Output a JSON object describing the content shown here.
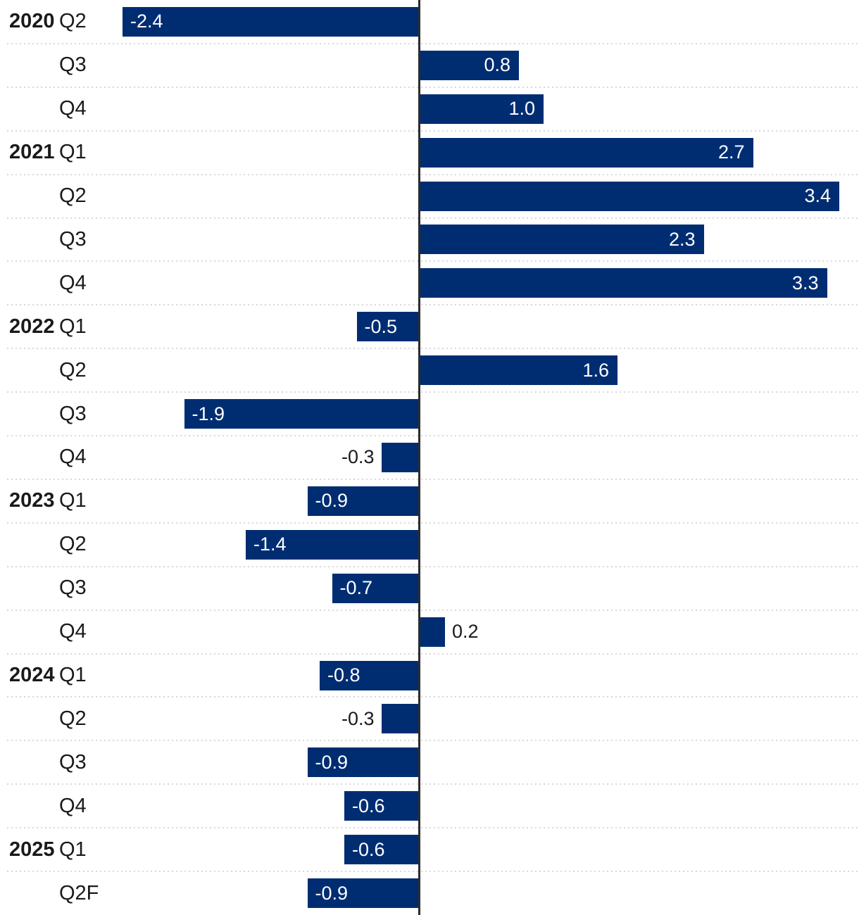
{
  "chart_data": {
    "type": "bar",
    "orientation": "horizontal",
    "title": "",
    "xlabel": "",
    "ylabel": "",
    "xlim": [
      -3.4,
      3.57
    ],
    "grid": "dotted-row-separators",
    "zero_axis_line": true,
    "legend": "none",
    "colors": {
      "bar": "#002d72",
      "value_label_inside": "#ffffff",
      "value_label_outside": "#1a1a1a",
      "category_text": "#1a1a1a",
      "axis_line": "#2d2d2d",
      "gridline": "#d8d8d8",
      "background": "#ffffff"
    },
    "rows": [
      {
        "year": "2020",
        "quarter": "Q2",
        "value": -2.4,
        "label": "-2.4"
      },
      {
        "year": "",
        "quarter": "Q3",
        "value": 0.8,
        "label": "0.8"
      },
      {
        "year": "",
        "quarter": "Q4",
        "value": 1.0,
        "label": "1.0"
      },
      {
        "year": "2021",
        "quarter": "Q1",
        "value": 2.7,
        "label": "2.7"
      },
      {
        "year": "",
        "quarter": "Q2",
        "value": 3.4,
        "label": "3.4"
      },
      {
        "year": "",
        "quarter": "Q3",
        "value": 2.3,
        "label": "2.3"
      },
      {
        "year": "",
        "quarter": "Q4",
        "value": 3.3,
        "label": "3.3"
      },
      {
        "year": "2022",
        "quarter": "Q1",
        "value": -0.5,
        "label": "-0.5"
      },
      {
        "year": "",
        "quarter": "Q2",
        "value": 1.6,
        "label": "1.6"
      },
      {
        "year": "",
        "quarter": "Q3",
        "value": -1.9,
        "label": "-1.9"
      },
      {
        "year": "",
        "quarter": "Q4",
        "value": -0.3,
        "label": "-0.3"
      },
      {
        "year": "2023",
        "quarter": "Q1",
        "value": -0.9,
        "label": "-0.9"
      },
      {
        "year": "",
        "quarter": "Q2",
        "value": -1.4,
        "label": "-1.4"
      },
      {
        "year": "",
        "quarter": "Q3",
        "value": -0.7,
        "label": "-0.7"
      },
      {
        "year": "",
        "quarter": "Q4",
        "value": 0.2,
        "label": "0.2"
      },
      {
        "year": "2024",
        "quarter": "Q1",
        "value": -0.8,
        "label": "-0.8"
      },
      {
        "year": "",
        "quarter": "Q2",
        "value": -0.3,
        "label": "-0.3"
      },
      {
        "year": "",
        "quarter": "Q3",
        "value": -0.9,
        "label": "-0.9"
      },
      {
        "year": "",
        "quarter": "Q4",
        "value": -0.6,
        "label": "-0.6"
      },
      {
        "year": "2025",
        "quarter": "Q1",
        "value": -0.6,
        "label": "-0.6"
      },
      {
        "year": "",
        "quarter": "Q2F",
        "value": -0.9,
        "label": "-0.9"
      }
    ]
  }
}
